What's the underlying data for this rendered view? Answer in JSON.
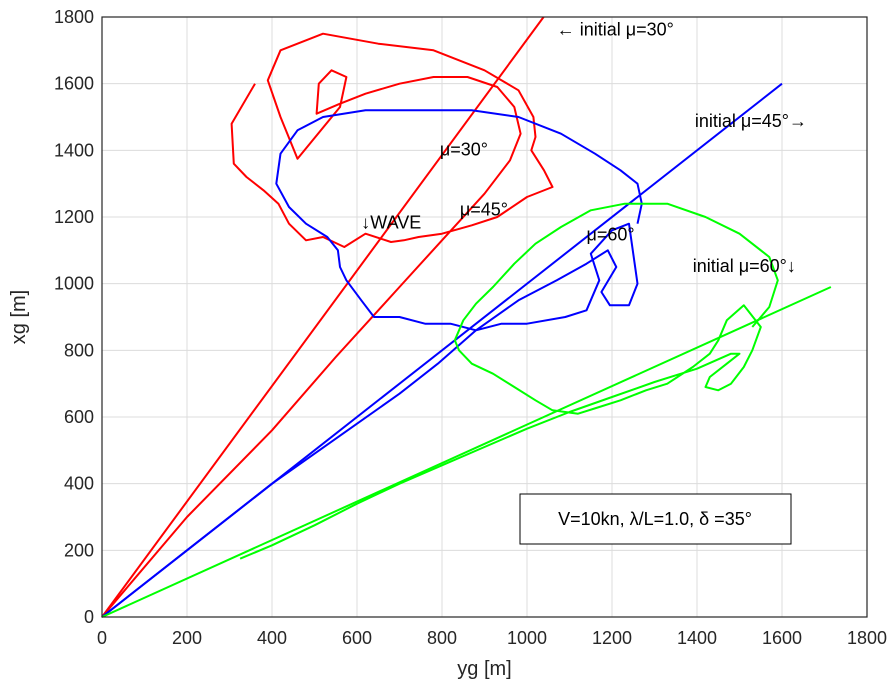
{
  "chart_data": {
    "type": "line",
    "title": "",
    "xlabel": "yg [m]",
    "ylabel": "xg [m]",
    "xlim": [
      0,
      1800
    ],
    "ylim": [
      0,
      1800
    ],
    "xticks": [
      0,
      200,
      400,
      600,
      800,
      1000,
      1200,
      1400,
      1600,
      1800
    ],
    "yticks": [
      0,
      200,
      400,
      600,
      800,
      1000,
      1200,
      1400,
      1600,
      1800
    ],
    "xtick_labels": [
      "0",
      "200",
      "400",
      "600",
      "800",
      "1000",
      "1200",
      "1400",
      "1600",
      "1800"
    ],
    "ytick_labels": [
      "0",
      "200",
      "400",
      "600",
      "800",
      "1000",
      "1200",
      "1400",
      "1600",
      "1800"
    ],
    "grid": true,
    "series": [
      {
        "color": "#ff0000",
        "kind": "initial-heading-line",
        "points": [
          [
            0,
            0
          ],
          [
            1039,
            1800
          ]
        ]
      },
      {
        "color": "#ff0000",
        "kind": "trajectory",
        "points": [
          [
            0,
            0
          ],
          [
            200,
            300
          ],
          [
            400,
            560
          ],
          [
            550,
            780
          ],
          [
            700,
            990
          ],
          [
            800,
            1130
          ],
          [
            900,
            1270
          ],
          [
            960,
            1370
          ],
          [
            985,
            1450
          ],
          [
            970,
            1530
          ],
          [
            930,
            1590
          ],
          [
            860,
            1620
          ],
          [
            780,
            1620
          ],
          [
            700,
            1600
          ],
          [
            620,
            1570
          ],
          [
            560,
            1540
          ],
          [
            505,
            1510
          ],
          [
            510,
            1600
          ],
          [
            540,
            1640
          ],
          [
            575,
            1620
          ],
          [
            560,
            1530
          ],
          [
            460,
            1375
          ],
          [
            420,
            1500
          ],
          [
            390,
            1610
          ],
          [
            420,
            1700
          ],
          [
            520,
            1750
          ],
          [
            650,
            1720
          ],
          [
            780,
            1700
          ],
          [
            900,
            1640
          ],
          [
            980,
            1580
          ],
          [
            1015,
            1500
          ],
          [
            1020,
            1440
          ],
          [
            1010,
            1400
          ],
          [
            1040,
            1340
          ],
          [
            1060,
            1290
          ],
          [
            1000,
            1260
          ],
          [
            930,
            1200
          ],
          [
            870,
            1175
          ],
          [
            800,
            1150
          ],
          [
            745,
            1140
          ],
          [
            710,
            1130
          ],
          [
            680,
            1125
          ],
          [
            620,
            1150
          ],
          [
            570,
            1110
          ],
          [
            520,
            1140
          ],
          [
            480,
            1130
          ],
          [
            440,
            1180
          ],
          [
            415,
            1240
          ],
          [
            380,
            1280
          ],
          [
            340,
            1320
          ],
          [
            310,
            1360
          ],
          [
            305,
            1480
          ],
          [
            360,
            1600
          ]
        ]
      },
      {
        "color": "#0000ff",
        "kind": "initial-heading-line",
        "points": [
          [
            0,
            0
          ],
          [
            1600,
            1600
          ]
        ]
      },
      {
        "color": "#0000ff",
        "kind": "trajectory",
        "points": [
          [
            0,
            0
          ],
          [
            200,
            200
          ],
          [
            400,
            400
          ],
          [
            500,
            490
          ],
          [
            600,
            580
          ],
          [
            700,
            670
          ],
          [
            790,
            760
          ],
          [
            880,
            860
          ],
          [
            980,
            950
          ],
          [
            1070,
            1010
          ],
          [
            1140,
            1060
          ],
          [
            1190,
            1100
          ],
          [
            1210,
            1050
          ],
          [
            1175,
            975
          ],
          [
            1195,
            935
          ],
          [
            1240,
            935
          ],
          [
            1260,
            1000
          ],
          [
            1240,
            1180
          ],
          [
            1200,
            1160
          ],
          [
            1150,
            1090
          ],
          [
            1170,
            1010
          ],
          [
            1140,
            920
          ],
          [
            1090,
            900
          ],
          [
            1000,
            880
          ],
          [
            940,
            880
          ],
          [
            880,
            860
          ],
          [
            820,
            880
          ],
          [
            760,
            880
          ],
          [
            700,
            900
          ],
          [
            640,
            900
          ],
          [
            610,
            950
          ],
          [
            575,
            1010
          ],
          [
            560,
            1050
          ],
          [
            555,
            1100
          ],
          [
            530,
            1140
          ],
          [
            480,
            1180
          ],
          [
            440,
            1230
          ],
          [
            410,
            1300
          ],
          [
            420,
            1390
          ],
          [
            460,
            1460
          ],
          [
            520,
            1500
          ],
          [
            620,
            1520
          ],
          [
            740,
            1520
          ],
          [
            870,
            1520
          ],
          [
            980,
            1500
          ],
          [
            1080,
            1450
          ],
          [
            1160,
            1390
          ],
          [
            1220,
            1340
          ],
          [
            1260,
            1300
          ],
          [
            1270,
            1240
          ],
          [
            1260,
            1180
          ]
        ]
      },
      {
        "color": "#00ff00",
        "kind": "initial-heading-line",
        "points": [
          [
            0,
            0
          ],
          [
            1715,
            990
          ]
        ]
      },
      {
        "color": "#00ff00",
        "kind": "trajectory",
        "points": [
          [
            325,
            175
          ],
          [
            400,
            215
          ],
          [
            500,
            275
          ],
          [
            600,
            340
          ],
          [
            700,
            400
          ],
          [
            800,
            455
          ],
          [
            900,
            510
          ],
          [
            1000,
            565
          ],
          [
            1100,
            615
          ],
          [
            1200,
            660
          ],
          [
            1300,
            705
          ],
          [
            1400,
            745
          ],
          [
            1480,
            790
          ],
          [
            1500,
            790
          ],
          [
            1470,
            760
          ],
          [
            1430,
            720
          ],
          [
            1420,
            690
          ],
          [
            1450,
            680
          ],
          [
            1480,
            700
          ],
          [
            1510,
            750
          ],
          [
            1530,
            800
          ],
          [
            1550,
            870
          ],
          [
            1510,
            935
          ],
          [
            1470,
            890
          ],
          [
            1450,
            830
          ],
          [
            1430,
            790
          ],
          [
            1390,
            750
          ],
          [
            1330,
            700
          ],
          [
            1280,
            680
          ],
          [
            1220,
            650
          ],
          [
            1170,
            630
          ],
          [
            1120,
            610
          ],
          [
            1060,
            620
          ],
          [
            1020,
            650
          ],
          [
            970,
            690
          ],
          [
            920,
            730
          ],
          [
            870,
            760
          ],
          [
            840,
            800
          ],
          [
            830,
            830
          ],
          [
            850,
            890
          ],
          [
            880,
            940
          ],
          [
            920,
            990
          ],
          [
            970,
            1060
          ],
          [
            1020,
            1120
          ],
          [
            1080,
            1170
          ],
          [
            1150,
            1220
          ],
          [
            1230,
            1240
          ],
          [
            1330,
            1240
          ],
          [
            1420,
            1200
          ],
          [
            1500,
            1150
          ],
          [
            1570,
            1080
          ],
          [
            1590,
            1010
          ],
          [
            1570,
            930
          ],
          [
            1530,
            870
          ]
        ]
      }
    ],
    "annotations": [
      {
        "text": "← initial μ=30°",
        "x": 1070,
        "y": 1745
      },
      {
        "text": "initial μ=45°→",
        "x": 1395,
        "y": 1470
      },
      {
        "text": "μ=30°",
        "x": 795,
        "y": 1385
      },
      {
        "text": "↓WAVE",
        "x": 610,
        "y": 1165
      },
      {
        "text": "μ=45°",
        "x": 842,
        "y": 1205
      },
      {
        "text": "μ=60°",
        "x": 1140,
        "y": 1130
      },
      {
        "text": "initial μ=60°↓",
        "x": 1390,
        "y": 1035
      }
    ],
    "legend_box_text": "V=10kn, λ/L=1.0, δ =35°"
  }
}
